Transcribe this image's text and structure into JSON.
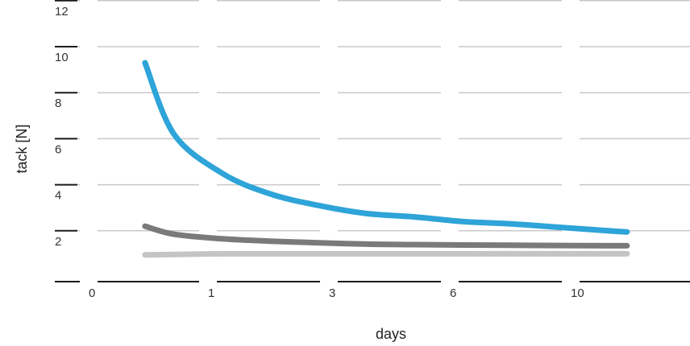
{
  "chart_data": {
    "type": "line",
    "title": "",
    "xlabel": "days",
    "ylabel": "tack [N]",
    "x_tick_labels": [
      "0",
      "1",
      "3",
      "6",
      "10"
    ],
    "y_ticks": [
      2,
      4,
      6,
      8,
      10,
      12
    ],
    "ylim": [
      0,
      12
    ],
    "grid": true,
    "legend": "none",
    "x_scale": "categorical (unequal spacing)",
    "series": [
      {
        "color": "#2ea4d8",
        "x": [
          0.4,
          1,
          2,
          3,
          4,
          5,
          6,
          7,
          8,
          9,
          10,
          10.4
        ],
        "values": [
          9.3,
          6.2,
          4.5,
          3.6,
          3.1,
          2.75,
          2.6,
          2.4,
          2.3,
          2.15,
          2.0,
          1.95
        ]
      },
      {
        "color": "#7a7a7b",
        "x": [
          0.4,
          1,
          2,
          3,
          4,
          5,
          6,
          7,
          8,
          9,
          10,
          10.4
        ],
        "values": [
          2.2,
          1.85,
          1.65,
          1.55,
          1.48,
          1.42,
          1.4,
          1.38,
          1.37,
          1.36,
          1.35,
          1.35
        ]
      },
      {
        "color": "#c4c4c4",
        "x": [
          0.4,
          1,
          2,
          3,
          4,
          5,
          6,
          7,
          8,
          9,
          10,
          10.4
        ],
        "values": [
          0.95,
          0.97,
          1.0,
          1.0,
          1.0,
          1.0,
          1.0,
          1.0,
          1.0,
          1.0,
          1.0,
          1.0
        ]
      }
    ]
  }
}
